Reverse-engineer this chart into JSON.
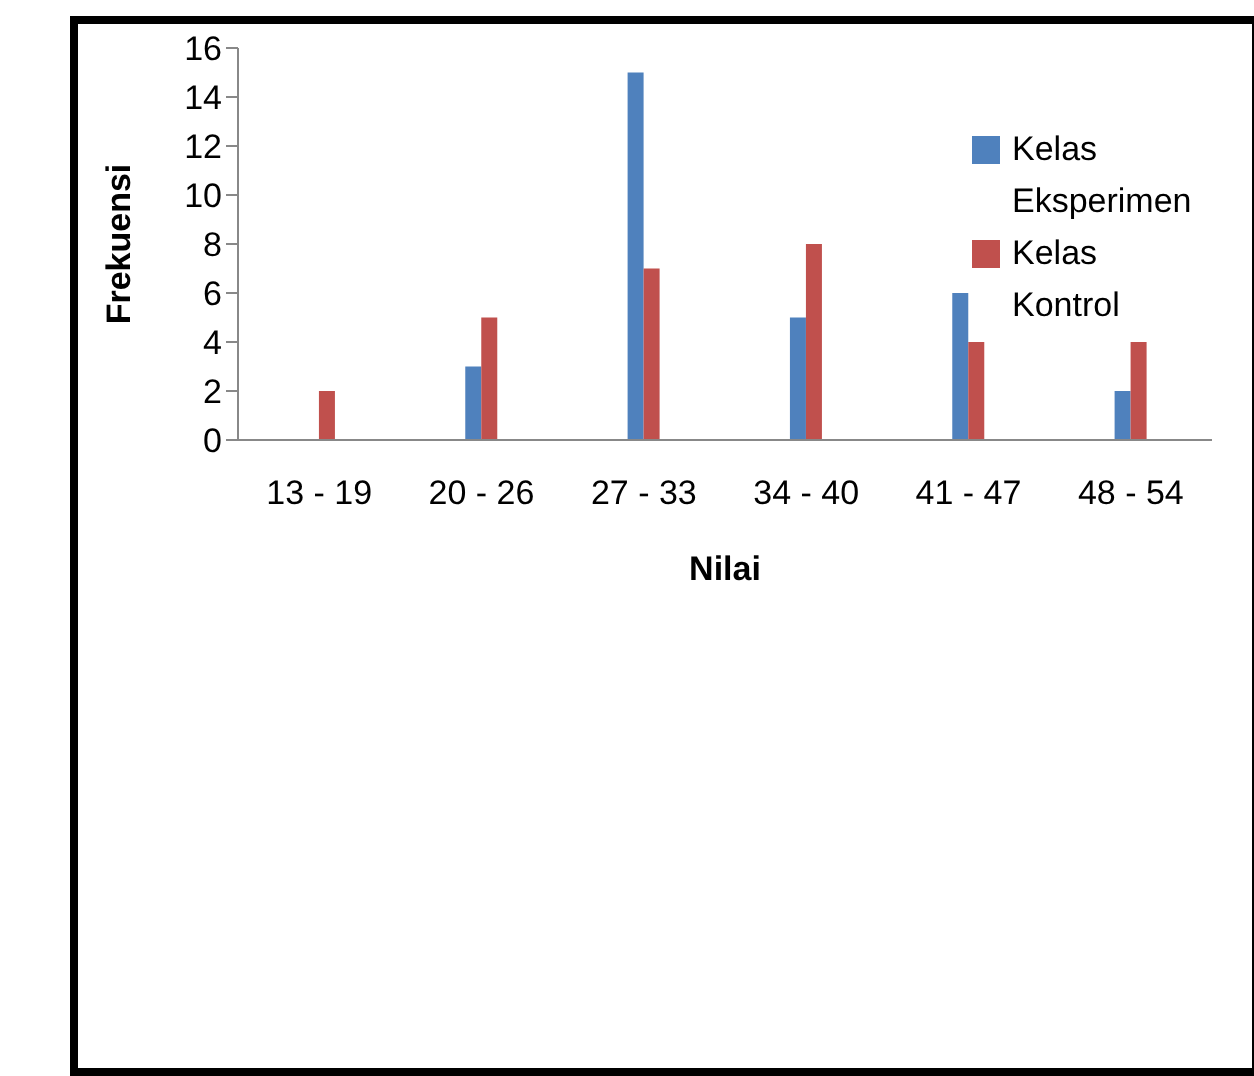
{
  "chart_data": {
    "type": "bar",
    "xlabel": "Nilai",
    "ylabel": "Frekuensi",
    "categories": [
      "13 - 19",
      "20 - 26",
      "27 - 33",
      "34 - 40",
      "41 - 47",
      "48 - 54"
    ],
    "series": [
      {
        "name": "Kelas Eksperimen",
        "color": "#4f81bd",
        "values": [
          0,
          3,
          15,
          5,
          6,
          2
        ]
      },
      {
        "name": "Kelas Kontrol",
        "color": "#c0504d",
        "values": [
          2,
          5,
          7,
          8,
          4,
          4
        ]
      }
    ],
    "ylim": [
      0,
      16
    ],
    "yticks": [
      0,
      2,
      4,
      6,
      8,
      10,
      12,
      14,
      16
    ],
    "grid": false,
    "legend": "top right"
  }
}
